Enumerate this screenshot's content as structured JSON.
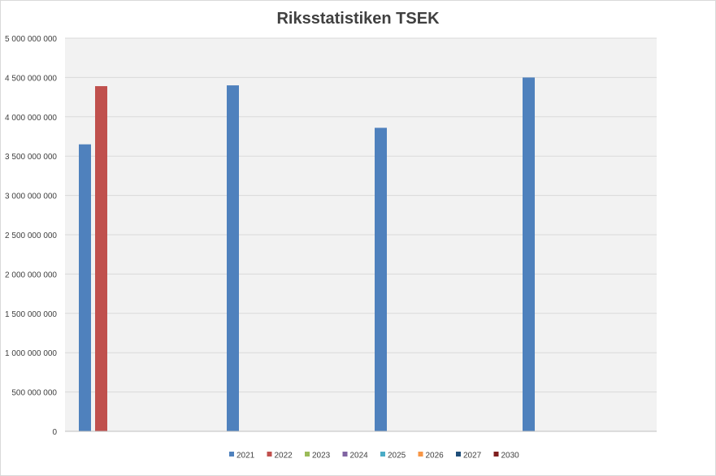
{
  "chart_data": {
    "type": "bar",
    "title": "Riksstatistiken TSEK",
    "categories": [
      "",
      "",
      "",
      ""
    ],
    "series": [
      {
        "name": "2021",
        "color": "#4f81bd",
        "values": [
          3650000000,
          4400000000,
          3860000000,
          4500000000
        ]
      },
      {
        "name": "2022",
        "color": "#c0504d",
        "values": [
          4390000000,
          null,
          null,
          null
        ]
      },
      {
        "name": "2023",
        "color": "#9bbb59",
        "values": [
          null,
          null,
          null,
          null
        ]
      },
      {
        "name": "2024",
        "color": "#8064a2",
        "values": [
          null,
          null,
          null,
          null
        ]
      },
      {
        "name": "2025",
        "color": "#4bacc6",
        "values": [
          null,
          null,
          null,
          null
        ]
      },
      {
        "name": "2026",
        "color": "#f79646",
        "values": [
          null,
          null,
          null,
          null
        ]
      },
      {
        "name": "2027",
        "color": "#1f4e79",
        "values": [
          null,
          null,
          null,
          null
        ]
      },
      {
        "name": "2030",
        "color": "#7f1f1f",
        "values": [
          null,
          null,
          null,
          null
        ]
      }
    ],
    "ylim": [
      0,
      5000000000
    ],
    "yticks": [
      "0",
      "500 000 000",
      "1 000 000 000",
      "1 500 000 000",
      "2 000 000 000",
      "2 500 000 000",
      "3 000 000 000",
      "3 500 000 000",
      "4 000 000 000",
      "4 500 000 000",
      "5 000 000 000"
    ],
    "grid": true,
    "legend_position": "bottom",
    "plot_background": "#f2f2f2"
  }
}
